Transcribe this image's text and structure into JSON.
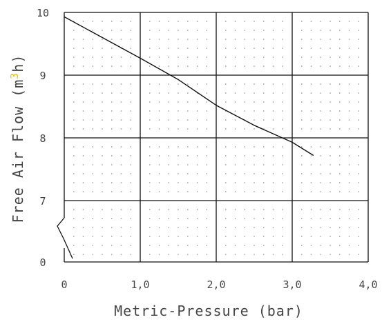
{
  "chart_data": {
    "type": "line",
    "title": "",
    "xlabel": "Metric-Pressure (bar)",
    "ylabel": {
      "before": "Free Air Flow (m",
      "superscript": "3",
      "after": "h)"
    },
    "x_ticks": [
      "0",
      "1,0",
      "2,0",
      "3,0",
      "4,0"
    ],
    "y_ticks": [
      "0",
      "7",
      "8",
      "9",
      "10"
    ],
    "xlim": [
      0,
      4
    ],
    "ylim": [
      6,
      10
    ],
    "y_axis_break": true,
    "grid": true,
    "legend": "none",
    "series": [
      {
        "x": [
          0,
          0.5,
          1.0,
          1.5,
          2.0,
          2.5,
          3.0,
          3.28
        ],
        "y": [
          9.93,
          9.6,
          9.27,
          8.93,
          8.52,
          8.2,
          7.93,
          7.72
        ]
      }
    ],
    "colors": {
      "line": "#111111",
      "grid": "#111111",
      "dots": "#888888",
      "unit_superscript": "#e8c200"
    }
  }
}
